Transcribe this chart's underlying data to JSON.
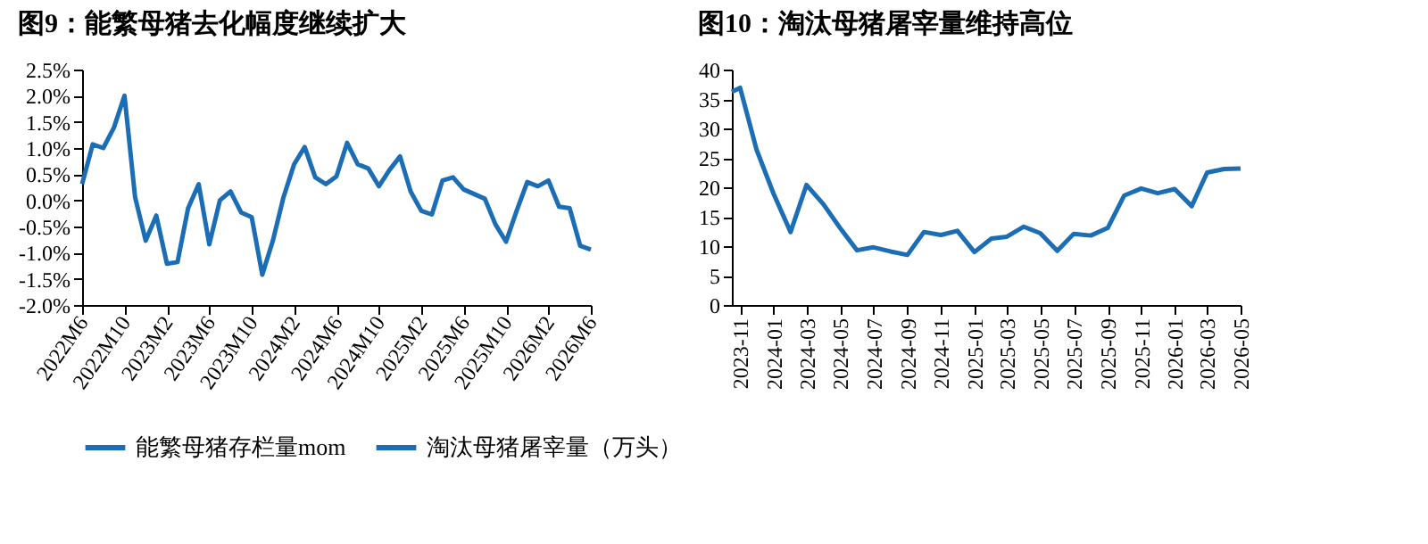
{
  "chart_data": [
    {
      "type": "line",
      "title": "图9：能繁母猪去化幅度继续扩大",
      "categories": [
        "2022M6",
        null,
        null,
        null,
        "2022M10",
        null,
        null,
        null,
        "2023M2",
        null,
        null,
        null,
        "2023M6",
        null,
        null,
        null,
        "2023M10",
        null,
        null,
        null,
        "2024M2",
        null,
        null,
        null,
        "2024M6",
        null,
        null,
        null,
        "2024M10",
        null,
        null,
        null,
        "2025M2",
        null,
        null,
        null,
        "2025M6",
        null,
        null,
        null,
        "2025M10",
        null,
        null,
        null,
        "2026M2",
        null,
        null,
        null,
        "2026M6"
      ],
      "series": [
        {
          "name": "能繁母猪存栏量mom",
          "color": "#1b6db5",
          "values": [
            0.31,
            1.07,
            1.0,
            1.39,
            2.0,
            0.06,
            -0.77,
            -0.29,
            -1.21,
            -1.18,
            -0.15,
            0.31,
            -0.84,
            0.0,
            0.17,
            -0.23,
            -0.32,
            -1.42,
            -0.77,
            0.06,
            0.69,
            1.02,
            0.44,
            0.31,
            0.46,
            1.1,
            0.69,
            0.61,
            0.27,
            0.58,
            0.84,
            0.17,
            -0.2,
            -0.27,
            0.38,
            0.44,
            0.21,
            0.12,
            0.03,
            -0.46,
            -0.79,
            -0.2,
            0.35,
            0.27,
            0.38,
            -0.12,
            -0.15,
            -0.87,
            -0.94
          ]
        }
      ],
      "ylim": [
        -2,
        2.5
      ],
      "yticks": [
        {
          "value": -2,
          "label": "-2.0%"
        },
        {
          "value": -1.5,
          "label": "-1.5%"
        },
        {
          "value": -1,
          "label": "-1.0%"
        },
        {
          "value": -0.5,
          "label": "-0.5%"
        },
        {
          "value": 0,
          "label": "0.0%"
        },
        {
          "value": 0.5,
          "label": "0.5%"
        },
        {
          "value": 1,
          "label": "1.0%"
        },
        {
          "value": 1.5,
          "label": "1.5%"
        },
        {
          "value": 2,
          "label": "2.0%"
        },
        {
          "value": 2.5,
          "label": "2.5%"
        }
      ],
      "legend": "bottom",
      "grid": false
    },
    {
      "type": "line",
      "title": "图10：淘汰母猪屠宰量维持高位",
      "x": [
        "2023-10-17",
        "2023-11",
        "2023-12",
        "2024-01",
        "2024-02",
        "2024-03",
        "2024-04",
        "2024-05",
        "2024-06",
        "2024-07",
        "2024-08",
        "2024-09",
        "2024-10",
        "2024-11",
        "2024-12",
        "2025-01",
        "2025-02",
        "2025-03",
        "2025-04",
        "2025-05",
        "2025-06",
        "2025-07",
        "2025-08",
        "2025-09",
        "2025-10",
        "2025-11",
        "2025-12",
        "2026-01",
        "2026-02",
        "2026-03",
        "2026-04",
        "2026-05"
      ],
      "series": [
        {
          "name": "淘汰母猪屠宰量（万头）",
          "color": "#1b6db5",
          "values": [
            36.2,
            36.9,
            26.4,
            18.9,
            12.4,
            20.4,
            17.1,
            13.1,
            9.3,
            9.8,
            9.1,
            8.5,
            12.4,
            11.9,
            12.6,
            9.0,
            11.3,
            11.6,
            13.3,
            12.2,
            9.2,
            12.1,
            11.8,
            13.1,
            18.6,
            19.8,
            19.0,
            19.7,
            16.8,
            22.5,
            23.1,
            23.2
          ]
        }
      ],
      "xlim": [
        "2023-10-17",
        "2026-05"
      ],
      "xticks": [
        "2023-11",
        "2024-01",
        "2024-03",
        "2024-05",
        "2024-07",
        "2024-09",
        "2024-11",
        "2025-01",
        "2025-03",
        "2025-05",
        "2025-07",
        "2025-09",
        "2025-11",
        "2026-01",
        "2026-03",
        "2026-05"
      ],
      "ylim": [
        0,
        40
      ],
      "yticks": [
        0,
        5,
        10,
        15,
        20,
        25,
        30,
        35,
        40
      ],
      "legend": "bottom",
      "grid": false
    }
  ]
}
